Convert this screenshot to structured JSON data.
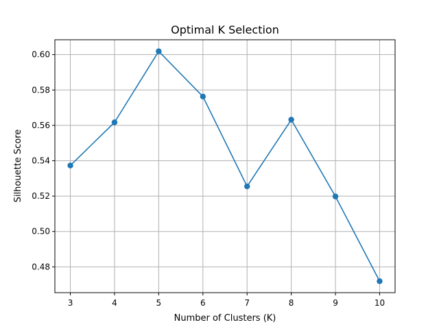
{
  "chart_data": {
    "type": "line",
    "title": "Optimal K Selection",
    "xlabel": "Number of Clusters (K)",
    "ylabel": "Silhouette Score",
    "x": [
      3,
      4,
      5,
      6,
      7,
      8,
      9,
      10
    ],
    "series": [
      {
        "values": [
          0.5373,
          0.5617,
          0.6019,
          0.5763,
          0.5255,
          0.5632,
          0.5198,
          0.4719
        ],
        "color": "#1f77b4",
        "marker": "circle"
      }
    ],
    "xticks": [
      "3",
      "4",
      "5",
      "6",
      "7",
      "8",
      "9",
      "10"
    ],
    "yticks": [
      "0.48",
      "0.50",
      "0.52",
      "0.54",
      "0.56",
      "0.58",
      "0.60"
    ],
    "xlim": [
      2.65,
      10.35
    ],
    "ylim": [
      0.4654,
      0.6084
    ],
    "grid": true
  }
}
